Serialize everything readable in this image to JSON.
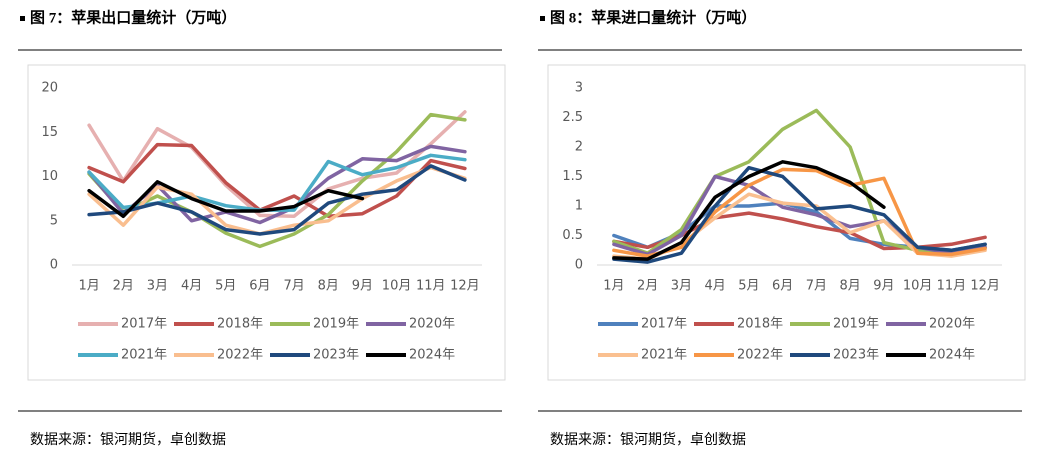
{
  "chart_data": [
    {
      "type": "line",
      "title": "图 7：苹果出口量统计（万吨）",
      "source": "数据来源：银河期货，卓创数据",
      "categories": [
        "1月",
        "2月",
        "3月",
        "4月",
        "5月",
        "6月",
        "7月",
        "8月",
        "9月",
        "10月",
        "11月",
        "12月"
      ],
      "ylim": [
        0,
        20
      ],
      "yticks": [
        0,
        5,
        10,
        15,
        20
      ],
      "series": [
        {
          "name": "2017年",
          "color": "#e6b0b0",
          "values": [
            15.8,
            9.5,
            15.4,
            13.3,
            9.0,
            5.6,
            5.5,
            8.6,
            9.8,
            10.4,
            13.7,
            17.3
          ]
        },
        {
          "name": "2018年",
          "color": "#c0504d",
          "values": [
            11.0,
            9.4,
            13.6,
            13.5,
            9.3,
            6.2,
            7.8,
            5.5,
            5.8,
            7.8,
            11.8,
            10.9
          ]
        },
        {
          "name": "2019年",
          "color": "#9bbb59",
          "values": [
            10.3,
            6.0,
            7.8,
            6.0,
            3.6,
            2.1,
            3.5,
            5.7,
            9.5,
            12.8,
            17.0,
            16.4
          ]
        },
        {
          "name": "2020年",
          "color": "#8064a2",
          "values": [
            10.5,
            5.8,
            9.0,
            5.0,
            6.0,
            4.8,
            6.5,
            9.8,
            12.0,
            11.8,
            13.4,
            12.8
          ]
        },
        {
          "name": "2021年",
          "color": "#4bacc6",
          "values": [
            10.5,
            6.5,
            7.0,
            7.8,
            6.7,
            6.2,
            6.2,
            11.7,
            10.2,
            11.0,
            12.4,
            11.9
          ]
        },
        {
          "name": "2022年",
          "color": "#f9be8f",
          "values": [
            8.0,
            4.5,
            8.8,
            8.0,
            4.5,
            3.5,
            4.5,
            5.0,
            7.5,
            9.5,
            11.0,
            9.8
          ]
        },
        {
          "name": "2023年",
          "color": "#1f497d",
          "values": [
            5.7,
            6.0,
            7.0,
            6.0,
            4.0,
            3.5,
            4.0,
            7.0,
            8.0,
            8.5,
            11.2,
            9.6
          ]
        },
        {
          "name": "2024年",
          "color": "#000000",
          "values": [
            8.4,
            5.5,
            9.4,
            7.5,
            6.1,
            6.1,
            6.6,
            8.4,
            7.5,
            null,
            null,
            null
          ]
        }
      ]
    },
    {
      "type": "line",
      "title": "图 8：苹果进口量统计（万吨）",
      "source": "数据来源：银河期货，卓创数据",
      "categories": [
        "1月",
        "2月",
        "3月",
        "4月",
        "5月",
        "6月",
        "7月",
        "8月",
        "9月",
        "10月",
        "11月",
        "12月"
      ],
      "ylim": [
        0,
        3
      ],
      "yticks": [
        0,
        0.5,
        1,
        1.5,
        2,
        2.5,
        3
      ],
      "series": [
        {
          "name": "2017年",
          "color": "#4f81bd",
          "values": [
            0.5,
            0.3,
            0.55,
            1.0,
            1.0,
            1.05,
            0.9,
            0.45,
            0.35,
            0.3,
            0.25,
            0.35
          ]
        },
        {
          "name": "2018年",
          "color": "#c0504d",
          "values": [
            0.4,
            0.3,
            0.5,
            0.8,
            0.88,
            0.78,
            0.65,
            0.55,
            0.28,
            0.3,
            0.35,
            0.47
          ]
        },
        {
          "name": "2019年",
          "color": "#9bbb59",
          "values": [
            0.4,
            0.2,
            0.6,
            1.5,
            1.75,
            2.3,
            2.62,
            2.0,
            0.38,
            0.25,
            0.2,
            0.3
          ]
        },
        {
          "name": "2020年",
          "color": "#8064a2",
          "values": [
            0.35,
            0.18,
            0.5,
            1.5,
            1.35,
            0.98,
            0.85,
            0.65,
            0.75,
            0.3,
            0.2,
            0.3
          ]
        },
        {
          "name": "2021年",
          "color": "#fac090",
          "values": [
            0.15,
            0.1,
            0.35,
            0.8,
            1.2,
            1.05,
            1.0,
            0.55,
            0.75,
            0.2,
            0.15,
            0.25
          ]
        },
        {
          "name": "2022年",
          "color": "#f79646",
          "values": [
            0.25,
            0.15,
            0.3,
            0.9,
            1.35,
            1.62,
            1.6,
            1.35,
            1.47,
            0.2,
            0.18,
            0.28
          ]
        },
        {
          "name": "2023年",
          "color": "#1f497d",
          "values": [
            0.1,
            0.05,
            0.2,
            1.0,
            1.65,
            1.5,
            0.95,
            1.0,
            0.85,
            0.3,
            0.25,
            0.35
          ]
        },
        {
          "name": "2024年",
          "color": "#000000",
          "values": [
            0.12,
            0.1,
            0.38,
            1.15,
            1.5,
            1.75,
            1.65,
            1.4,
            0.98,
            null,
            null,
            null
          ]
        }
      ]
    }
  ]
}
